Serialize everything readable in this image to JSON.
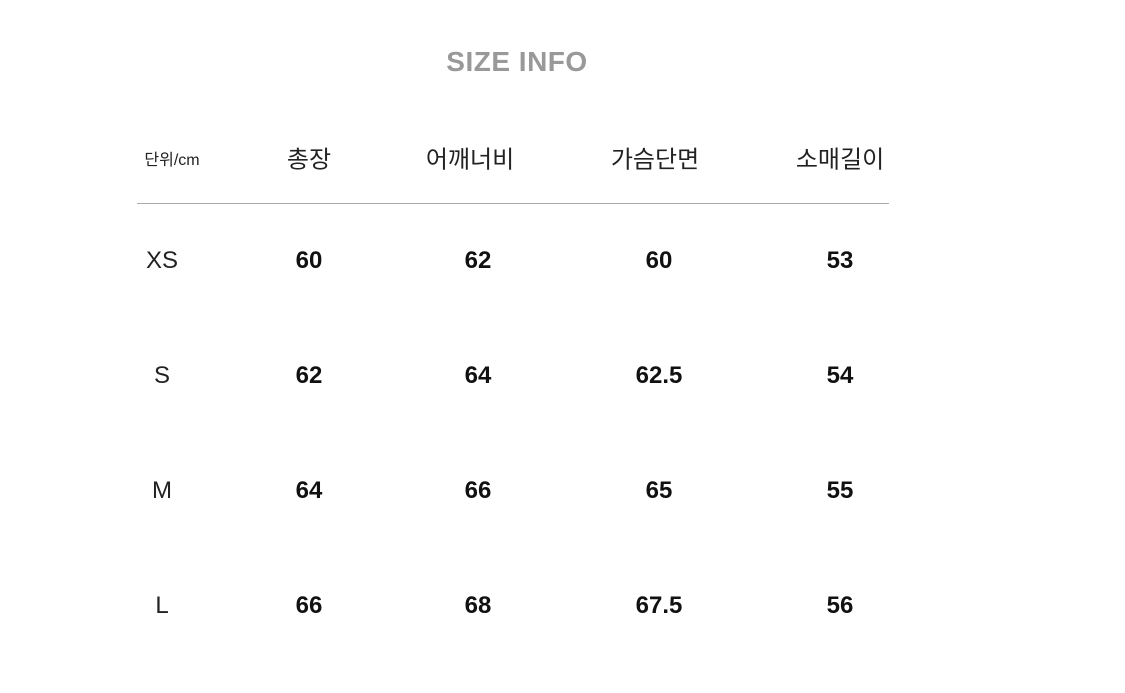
{
  "title": "SIZE INFO",
  "unit_label": "단위/cm",
  "columns": [
    "총장",
    "어깨너비",
    "가슴단면",
    "소매길이"
  ],
  "rows": [
    {
      "size": "XS",
      "values": [
        "60",
        "62",
        "60",
        "53"
      ]
    },
    {
      "size": "S",
      "values": [
        "62",
        "64",
        "62.5",
        "54"
      ]
    },
    {
      "size": "M",
      "values": [
        "64",
        "66",
        "65",
        "55"
      ]
    },
    {
      "size": "L",
      "values": [
        "66",
        "68",
        "67.5",
        "56"
      ]
    }
  ]
}
